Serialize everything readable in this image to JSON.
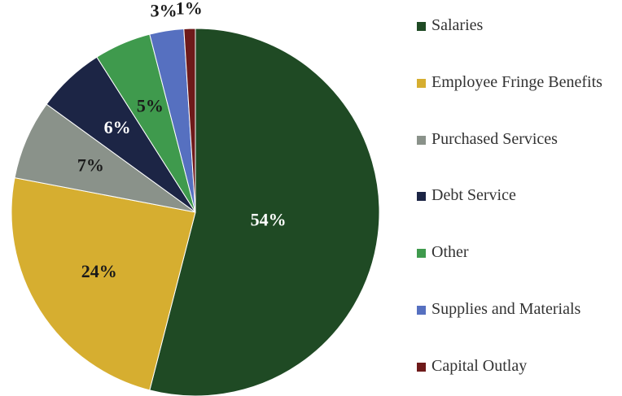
{
  "chart_data": {
    "type": "pie",
    "categories": [
      "Salaries",
      "Employee Fringe Benefits",
      "Purchased Services",
      "Debt Service",
      "Other",
      "Supplies and Materials",
      "Capital Outlay"
    ],
    "values": [
      54,
      24,
      7,
      6,
      5,
      3,
      1
    ],
    "colors": [
      "#1f4a24",
      "#d6ae30",
      "#8a928a",
      "#1c2545",
      "#3f9a4d",
      "#5670c0",
      "#6e1a1a"
    ],
    "label_colors": [
      "#ffffff",
      "#1a1a1a",
      "#1a1a1a",
      "#ffffff",
      "#1a1a1a",
      "#1a1a1a",
      "#1a1a1a"
    ],
    "value_labels": [
      "54%",
      "24%",
      "7%",
      "6%",
      "5%",
      "3%",
      "1%"
    ],
    "legend": "right"
  }
}
